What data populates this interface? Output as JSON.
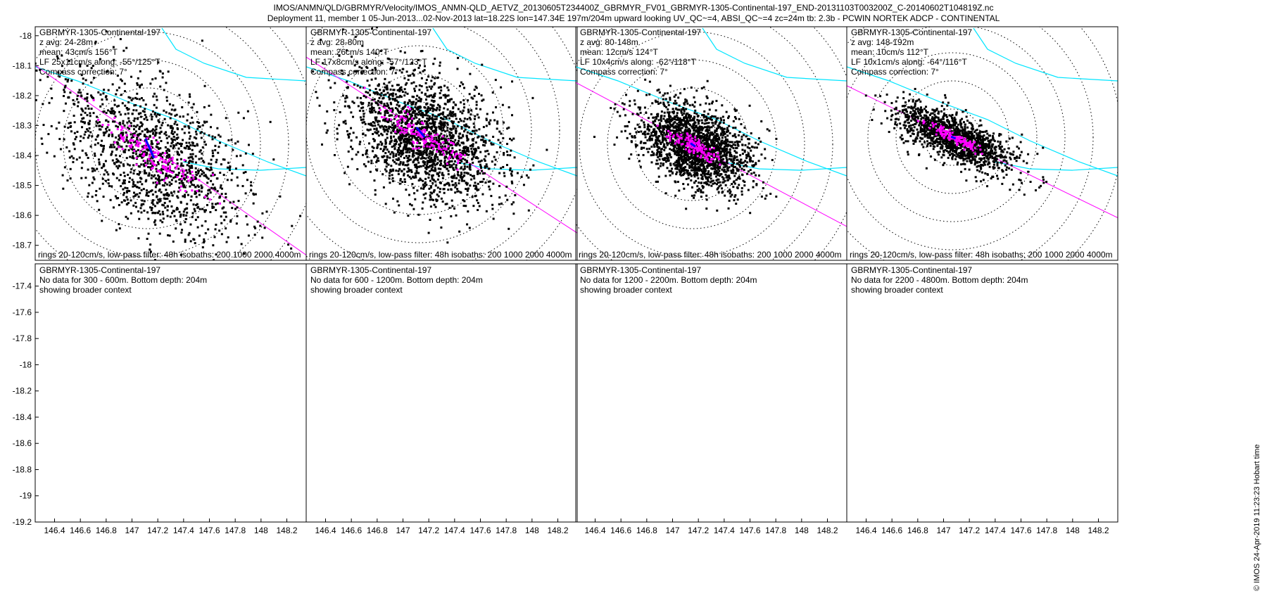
{
  "header": {
    "line1": "IMOS/ANMN/QLD/GBRMYR/Velocity/IMOS_ANMN-QLD_AETVZ_20130605T234400Z_GBRMYR_FV01_GBRMYR-1305-Continental-197_END-20131103T003200Z_C-20140602T104819Z.nc",
    "line2": "Deployment 11, member 1 05-Jun-2013...02-Nov-2013 lat=18.22S lon=147.34E 197m/204m upward looking UV_QC~=4, ABSI_QC~=4 zc=24m tb: 2.3b - PCWIN NORTEK ADCP - CONTINENTAL"
  },
  "stamp": "© IMOS 24-Apr-2019 11:23:23 Hobart time",
  "colors": {
    "scatter": "#000000",
    "lowpass": "#ff00ff",
    "mean_vector": "#0000ff",
    "isobath": "#00e5ff",
    "land": "#f2c69a",
    "rings": "#000000"
  },
  "chart_data": {
    "type": "scatter",
    "top_row": {
      "station_label": "GBRMYR-1305-Continental-197",
      "footer": "rings 20-120cm/s, low-pass filter: 48h isobaths: 200 1000 2000 4000m",
      "y_ticks": [
        "-18",
        "-18.1",
        "-18.2",
        "-18.3",
        "-18.4",
        "-18.5",
        "-18.6",
        "-18.7"
      ],
      "y_tick_values": [
        -18,
        -18.1,
        -18.2,
        -18.3,
        -18.4,
        -18.5,
        -18.6,
        -18.7
      ],
      "ylim": [
        -18.75,
        -17.97
      ],
      "panels": [
        {
          "z": "z avg: 24-28m",
          "mean": "mean: 43cm/s 156°T",
          "lf": "LF 25x11cm/s along: -55°/125°T",
          "compass": "Compass correction: 7°",
          "speed_cm_s": 43,
          "direction_deg": 156,
          "lf_major_cm_s": 25,
          "lf_minor_cm_s": 11,
          "along_deg": 125
        },
        {
          "z": "z avg: 28-80m",
          "mean": "mean: 26cm/s 140°T",
          "lf": "LF 17x8cm/s along: -57°/123°T",
          "compass": "Compass correction: 7°",
          "speed_cm_s": 26,
          "direction_deg": 140,
          "lf_major_cm_s": 17,
          "lf_minor_cm_s": 8,
          "along_deg": 123
        },
        {
          "z": "z avg: 80-148m",
          "mean": "mean: 12cm/s 124°T",
          "lf": "LF 10x4cm/s along: -62°/118°T",
          "compass": "Compass correction: 7°",
          "speed_cm_s": 12,
          "direction_deg": 124,
          "lf_major_cm_s": 10,
          "lf_minor_cm_s": 4,
          "along_deg": 118
        },
        {
          "z": "z avg: 148-192m",
          "mean": "mean: 10cm/s 112°T",
          "lf": "LF 10x1cm/s along: -64°/116°T",
          "compass": "Compass correction: 7°",
          "speed_cm_s": 10,
          "direction_deg": 112,
          "lf_major_cm_s": 10,
          "lf_minor_cm_s": 1,
          "along_deg": 116
        }
      ]
    },
    "bottom_row": {
      "station_label": "GBRMYR-1305-Continental-197",
      "context": "showing broader context",
      "x_ticks": [
        "146.4",
        "146.6",
        "146.8",
        "147",
        "147.2",
        "147.4",
        "147.6",
        "147.8",
        "148",
        "148.2"
      ],
      "x_tick_values": [
        146.4,
        146.6,
        146.8,
        147.0,
        147.2,
        147.4,
        147.6,
        147.8,
        148.0,
        148.2
      ],
      "xlim": [
        146.25,
        148.35
      ],
      "y_ticks": [
        "-17.4",
        "-17.6",
        "-17.8",
        "-18",
        "-18.2",
        "-18.4",
        "-18.6",
        "-18.8",
        "-19",
        "-19.2"
      ],
      "y_tick_values": [
        -17.4,
        -17.6,
        -17.8,
        -18.0,
        -18.2,
        -18.4,
        -18.6,
        -18.8,
        -19.0,
        -19.2
      ],
      "ylim": [
        -19.2,
        -17.23
      ],
      "panels": [
        {
          "nodata": "No data for 300 - 600m. Bottom depth: 204m"
        },
        {
          "nodata": "No data for 600 - 1200m. Bottom depth: 204m"
        },
        {
          "nodata": "No data for 1200 - 2200m. Bottom depth: 204m"
        },
        {
          "nodata": "No data for 2200 - 4800m. Bottom depth: 204m"
        }
      ]
    },
    "mooring": {
      "lat": -18.22,
      "lon": 147.34
    }
  }
}
